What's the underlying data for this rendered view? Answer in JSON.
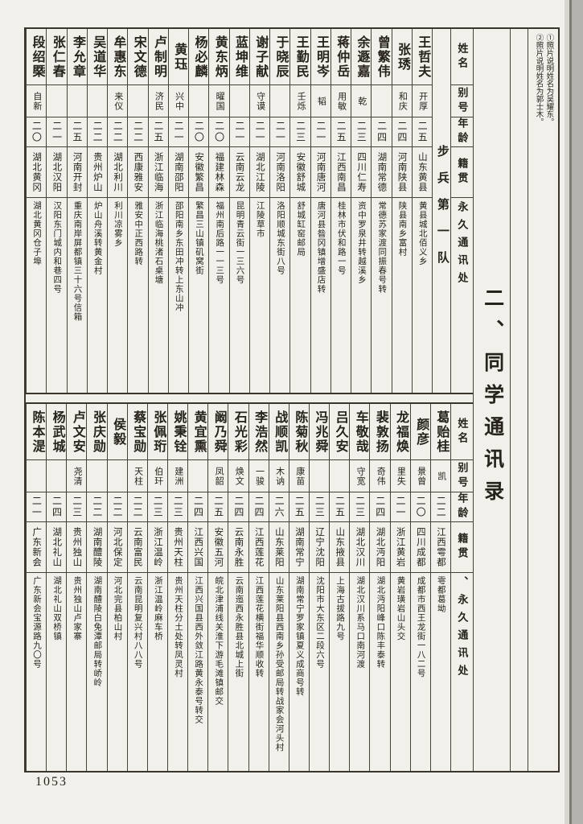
{
  "title": "二、同学通讯录",
  "page": {
    "number": "1053"
  },
  "annotation": {
    "lines": [
      "①照片说明姓名为吴耀东。",
      "②照片说明姓名为郭士木。"
    ]
  },
  "sections": [
    {
      "label": "步兵第一队",
      "headers": [
        "姓名",
        "别号",
        "年龄",
        "籍贯",
        "永久通讯处"
      ],
      "people": [
        {
          "name": "王哲夫",
          "alias": "开厚",
          "age": "二五",
          "origin": "山东黄县",
          "address": "黄县城北佰义乡"
        },
        {
          "name": "张琇",
          "alias": "和庆",
          "age": "二四",
          "origin": "河南陕县",
          "address": "陕县南乡富村"
        },
        {
          "name": "曾繁伟",
          "alias": "",
          "age": "二四",
          "origin": "湖南常德",
          "address": "常德苏家渡同振春号转"
        },
        {
          "name": "余遯嘉",
          "alias": "乾",
          "age": "二三",
          "origin": "四川仁寿",
          "address": "资中罗泉井转越溪乡"
        },
        {
          "name": "蒋仲岳",
          "alias": "用敏",
          "age": "二五",
          "origin": "江西南昌",
          "address": "桂林市伏和路一号"
        },
        {
          "name": "王明岑",
          "alias": "韬",
          "age": "二一",
          "origin": "河南唐河",
          "address": "唐河县昝冈镇增盛店转"
        },
        {
          "name": "王勤民",
          "alias": "壬烁",
          "age": "二三",
          "origin": "安徽舒城",
          "address": "舒城缸窑邮局"
        },
        {
          "name": "于晓辰",
          "alias": "",
          "age": "二一",
          "origin": "河南洛阳",
          "address": "洛阳顺城东街八号"
        },
        {
          "name": "谢子献",
          "alias": "守谟",
          "age": "二一",
          "origin": "湖北江陵",
          "address": "江陵草市"
        },
        {
          "name": "蓝坤维",
          "alias": "",
          "age": "二一",
          "origin": "云南云龙",
          "address": "昆明青云街一三六号"
        },
        {
          "name": "黄东炳",
          "alias": "曜国",
          "age": "二〇",
          "origin": "福建林森",
          "address": "福州南后路一一三号"
        },
        {
          "name": "杨必麟",
          "alias": "",
          "age": "二〇",
          "origin": "安徽繁昌",
          "address": "繁昌三山镇矶窝街"
        },
        {
          "name": "黄珏",
          "alias": "兴中",
          "age": "二一",
          "origin": "湖南邵阳",
          "address": "邵阳南乡东田冲转上东山冲"
        },
        {
          "name": "卢制明",
          "alias": "济民",
          "age": "二五",
          "origin": "浙江临海",
          "address": "浙江临海桃渚石桌塘"
        },
        {
          "name": "宋文德",
          "alias": "",
          "age": "二二",
          "origin": "西康雅安",
          "address": "雅安中正西路转"
        },
        {
          "name": "牟惠东",
          "alias": "来仪",
          "age": "二二",
          "origin": "湖北利川",
          "address": "利川凉雾乡"
        },
        {
          "name": "吴道华",
          "alias": "",
          "age": "二二",
          "origin": "贵州炉山",
          "address": "炉山舟溪转黄金村"
        },
        {
          "name": "李允章",
          "alias": "",
          "age": "二五",
          "origin": "河南开封",
          "address": "重庆南岸屏都镇三十六号信箱"
        },
        {
          "name": "张仁春",
          "alias": "",
          "age": "二一",
          "origin": "湖北汉阳",
          "address": "汉阳东门城内和巷四号"
        },
        {
          "name": "段绍槩",
          "alias": "自新",
          "age": "二〇",
          "origin": "湖北黄冈",
          "address": "湖北黄冈仓子埠"
        }
      ]
    },
    {
      "label": "",
      "headers": [
        "姓名",
        "别号",
        "年龄",
        "籍贯",
        "、永久通讯处"
      ],
      "people": [
        {
          "name": "葛贻桂",
          "alias": "凯",
          "age": "二二",
          "origin": "江西雩都",
          "address": "雩都葛坳"
        },
        {
          "name": "颜彦",
          "alias": "景曾",
          "age": "二〇",
          "origin": "四川成都",
          "address": "成都市西王龙街一八二号"
        },
        {
          "name": "龙福焕",
          "alias": "里失",
          "age": "二一",
          "origin": "浙江黄岩",
          "address": "黄岩璜岩山头交"
        },
        {
          "name": "裴敦扬",
          "alias": "奇伟",
          "age": "二四",
          "origin": "湖北沔阳",
          "address": "湖北沔阳峰口陈丰泰转"
        },
        {
          "name": "车敬哉",
          "alias": "守宽",
          "age": "二三",
          "origin": "湖北汉川",
          "address": "湖北汉川系马口南河渡"
        },
        {
          "name": "吕久安",
          "alias": "",
          "age": "二五",
          "origin": "山东掖县",
          "address": "上海古拔路九号"
        },
        {
          "name": "冯兆舜",
          "alias": "",
          "age": "二三",
          "origin": "辽宁沈阳",
          "address": "沈阳市大东区二段六号"
        },
        {
          "name": "陈菊秋",
          "alias": "康苗",
          "age": "二五",
          "origin": "湖南常宁",
          "address": "湖南常宁罗家镇夏义成商号转"
        },
        {
          "name": "战顺凯",
          "alias": "木讷",
          "age": "二六",
          "origin": "山东莱阳",
          "address": "山东莱阳县西南乡孙受邮局转战家会河头村"
        },
        {
          "name": "李浩然",
          "alias": "一骏",
          "age": "二四",
          "origin": "江西莲花",
          "address": "江西莲花横街福华顺收转"
        },
        {
          "name": "石光彩",
          "alias": "焕文",
          "age": "二四",
          "origin": "云南永胜",
          "address": "云南迤西永胜县北城上街"
        },
        {
          "name": "阚乃舜",
          "alias": "凤韶",
          "age": "二五",
          "origin": "安徽五河",
          "address": "皖北津浦线关淮下游毛滩镇邮交"
        },
        {
          "name": "黄宜熏",
          "alias": "",
          "age": "二四",
          "origin": "江西兴国",
          "address": "江西兴国县西外敛江路黄永泰号转交"
        },
        {
          "name": "姚秉铨",
          "alias": "建洲",
          "age": "二三",
          "origin": "贵州天柱",
          "address": "贵州天柱分土处转凤灵村"
        },
        {
          "name": "张佩珩",
          "alias": "伯玕",
          "age": "二三",
          "origin": "浙江温岭",
          "address": "浙江温岭麻车桥"
        },
        {
          "name": "蔡宝勋",
          "alias": "天柱",
          "age": "二二",
          "origin": "云南富民",
          "address": "云南昆明复兴村八八号"
        },
        {
          "name": "侯毅",
          "alias": "",
          "age": "二二",
          "origin": "河北保定",
          "address": "河北完县柏山村"
        },
        {
          "name": "张庆勋",
          "alias": "",
          "age": "二二",
          "origin": "湖南醴陵",
          "address": "湖南醴陵白兔潭邮局转峤岭"
        },
        {
          "name": "卢文安",
          "alias": "尧清",
          "age": "二三",
          "origin": "贵州独山",
          "address": "贵州独山卢家寨"
        },
        {
          "name": "杨武城",
          "alias": "",
          "age": "二四",
          "origin": "湖北礼山",
          "address": "湖北礼山双桥镇"
        },
        {
          "name": "陈本湜",
          "alias": "",
          "age": "二一",
          "origin": "广东新会",
          "address": "广东新会宝源路九〇号"
        }
      ]
    }
  ]
}
